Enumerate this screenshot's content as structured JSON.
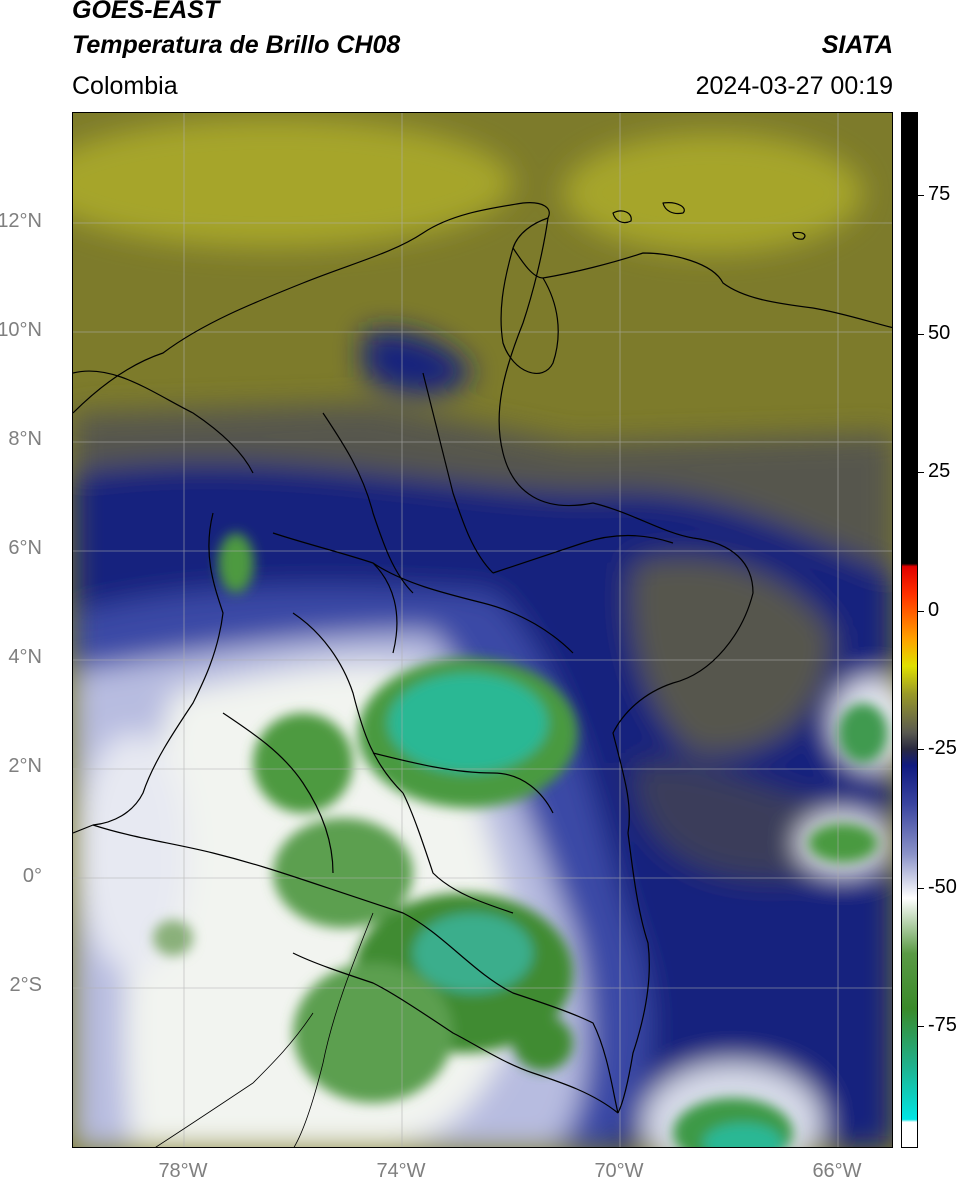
{
  "header": {
    "satellite": "GOES-EAST",
    "product": "Temperatura de Brillo CH08",
    "region": "Colombia",
    "source": "SIATA",
    "datetime": "2024-03-27 00:19"
  },
  "map": {
    "lat_ticks": [
      "12°N",
      "10°N",
      "8°N",
      "6°N",
      "4°N",
      "2°N",
      "0°",
      "2°S"
    ],
    "lon_ticks": [
      "78°W",
      "74°W",
      "70°W",
      "66°W"
    ],
    "gridlines": true,
    "colors": {
      "warm_olive": "#7d7b2b",
      "yellow_olive": "#a6a52a",
      "dark_gray": "#56564e",
      "navy": "#15207e",
      "blue": "#3a48a6",
      "lavender": "#b7bce0",
      "white": "#f2f4f0",
      "green": "#3f8b33",
      "teal": "#2cb894",
      "coast_line": "#000000"
    }
  },
  "colorbar": {
    "ticks": [
      "75",
      "50",
      "25",
      "0",
      "-25",
      "-50",
      "-75"
    ],
    "tick_values": [
      75,
      50,
      25,
      0,
      -25,
      -50,
      -75
    ],
    "range": [
      -97,
      90
    ],
    "stops": [
      {
        "v": -97,
        "c": "#ffffff"
      },
      {
        "v": -92.5,
        "c": "#ffffff"
      },
      {
        "v": -92,
        "c": "#00e5e5"
      },
      {
        "v": -82,
        "c": "#20b08a"
      },
      {
        "v": -72,
        "c": "#3a8a2a"
      },
      {
        "v": -62,
        "c": "#5a9a45"
      },
      {
        "v": -52,
        "c": "#ffffff"
      },
      {
        "v": -44,
        "c": "#8a92c8"
      },
      {
        "v": -35,
        "c": "#3a44a0"
      },
      {
        "v": -28,
        "c": "#101a80"
      },
      {
        "v": -25,
        "c": "#2a2a40"
      },
      {
        "v": -22,
        "c": "#5a5a50"
      },
      {
        "v": -15,
        "c": "#9a9a28"
      },
      {
        "v": -10,
        "c": "#e0e000"
      },
      {
        "v": -5,
        "c": "#ffa000"
      },
      {
        "v": 3,
        "c": "#ff3000"
      },
      {
        "v": 8,
        "c": "#e00000"
      },
      {
        "v": 8.5,
        "c": "#000000"
      },
      {
        "v": 90,
        "c": "#000000"
      }
    ]
  }
}
